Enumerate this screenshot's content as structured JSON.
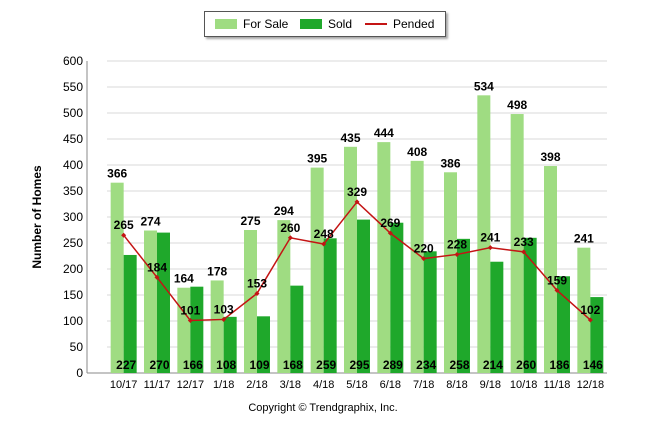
{
  "chart_data": {
    "type": "bar",
    "ylabel": "Number of Homes",
    "xlabel": "",
    "ylim": [
      0,
      600
    ],
    "ytick_step": 50,
    "categories": [
      "10/17",
      "11/17",
      "12/17",
      "1/18",
      "2/18",
      "3/18",
      "4/18",
      "5/18",
      "6/18",
      "7/18",
      "8/18",
      "9/18",
      "10/18",
      "11/18",
      "12/18"
    ],
    "series": [
      {
        "name": "For Sale",
        "type": "bar",
        "color": "#9fdc82",
        "values": [
          366,
          274,
          164,
          178,
          275,
          294,
          395,
          435,
          444,
          408,
          386,
          534,
          498,
          398,
          241
        ]
      },
      {
        "name": "Sold",
        "type": "bar",
        "color": "#1fa82b",
        "values": [
          227,
          270,
          166,
          108,
          109,
          168,
          259,
          295,
          289,
          234,
          258,
          214,
          260,
          186,
          146
        ]
      },
      {
        "name": "Pended",
        "type": "line",
        "color": "#c41414",
        "values": [
          265,
          184,
          101,
          103,
          153,
          260,
          248,
          329,
          269,
          220,
          228,
          241,
          233,
          159,
          102
        ]
      }
    ],
    "grid": true,
    "legend_position": "top-center",
    "footer": "Copyright © Trendgraphix, Inc."
  }
}
